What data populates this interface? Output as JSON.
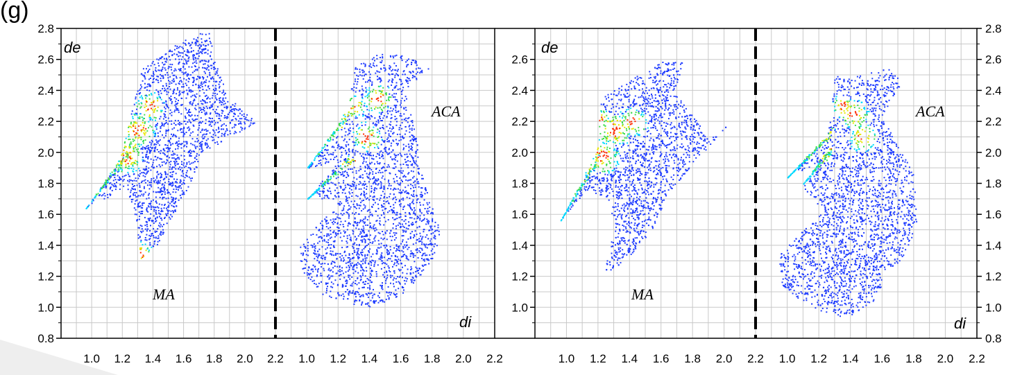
{
  "figure": {
    "panel_label": "(g)",
    "colors": {
      "low": "#1f3cff",
      "mid": "#00d9ff",
      "high1": "#3ddc4a",
      "high2": "#e6e600",
      "peak": "#ff2a00"
    }
  },
  "chart_data": [
    {
      "type": "scatter",
      "subtype": "2D fingerprint plot (point density colour map)",
      "xlabel": "di",
      "ylabel": "de",
      "xlim": [
        0.8,
        2.2
      ],
      "ylim": [
        0.8,
        2.8
      ],
      "x_ticks": [
        "1.0",
        "1.2",
        "1.4",
        "1.6",
        "1.8",
        "2.0",
        "2.2"
      ],
      "y_ticks": [
        "0.8",
        "1.0",
        "1.2",
        "1.4",
        "1.6",
        "1.8",
        "2.0",
        "2.2",
        "2.4",
        "2.6",
        "2.8"
      ],
      "y_axis_side": "left",
      "grid": true,
      "region_label": "MA",
      "spikes": [
        {
          "tip": [
            0.96,
            1.64
          ],
          "base": [
            1.28,
            2.06
          ]
        }
      ],
      "hull": [
        [
          0.96,
          1.64
        ],
        [
          1.18,
          1.95
        ],
        [
          1.33,
          2.55
        ],
        [
          1.55,
          2.7
        ],
        [
          1.76,
          2.8
        ],
        [
          1.8,
          2.6
        ],
        [
          1.9,
          2.35
        ],
        [
          2.08,
          2.2
        ],
        [
          1.9,
          2.1
        ],
        [
          1.72,
          2.0
        ],
        [
          1.62,
          1.75
        ],
        [
          1.5,
          1.55
        ],
        [
          1.42,
          1.4
        ],
        [
          1.32,
          1.32
        ],
        [
          1.28,
          1.6
        ],
        [
          1.22,
          1.78
        ],
        [
          1.08,
          1.7
        ]
      ],
      "hotspots": [
        [
          1.22,
          1.98,
          0.06
        ],
        [
          1.3,
          2.15,
          0.06
        ],
        [
          1.38,
          2.3,
          0.05
        ],
        [
          1.32,
          1.35,
          0.04
        ]
      ]
    },
    {
      "type": "scatter",
      "subtype": "2D fingerprint plot (point density colour map)",
      "xlabel": "di",
      "ylabel": "de",
      "xlim": [
        0.8,
        2.2
      ],
      "ylim": [
        0.8,
        2.8
      ],
      "x_ticks": [
        "1.0",
        "1.2",
        "1.4",
        "1.6",
        "1.8",
        "2.0",
        "2.2"
      ],
      "y_ticks": [],
      "grid": true,
      "region_label": "ACA",
      "spikes": [
        {
          "tip": [
            1.0,
            1.9
          ],
          "base": [
            1.3,
            2.3
          ]
        },
        {
          "tip": [
            1.0,
            1.7
          ],
          "base": [
            1.3,
            1.98
          ]
        }
      ],
      "hull": [
        [
          1.0,
          1.9
        ],
        [
          1.25,
          2.2
        ],
        [
          1.3,
          2.55
        ],
        [
          1.45,
          2.65
        ],
        [
          1.65,
          2.62
        ],
        [
          1.78,
          2.55
        ],
        [
          1.62,
          2.4
        ],
        [
          1.7,
          2.1
        ],
        [
          1.72,
          1.9
        ],
        [
          1.78,
          1.7
        ],
        [
          1.85,
          1.5
        ],
        [
          1.82,
          1.35
        ],
        [
          1.72,
          1.2
        ],
        [
          1.62,
          1.1
        ],
        [
          1.45,
          1.0
        ],
        [
          1.3,
          1.02
        ],
        [
          1.1,
          1.08
        ],
        [
          0.96,
          1.25
        ],
        [
          0.95,
          1.4
        ],
        [
          1.08,
          1.55
        ],
        [
          1.22,
          1.7
        ],
        [
          1.0,
          1.7
        ],
        [
          1.2,
          1.95
        ]
      ],
      "hotspots": [
        [
          1.38,
          2.1,
          0.05
        ],
        [
          1.45,
          2.35,
          0.05
        ],
        [
          1.3,
          2.3,
          0.04
        ]
      ]
    },
    {
      "type": "scatter",
      "subtype": "2D fingerprint plot (point density colour map)",
      "xlabel": "di",
      "ylabel": "de",
      "xlim": [
        0.8,
        2.2
      ],
      "ylim": [
        0.8,
        2.8
      ],
      "x_ticks": [
        "1.0",
        "1.2",
        "1.4",
        "1.6",
        "1.8",
        "2.0",
        "2.2"
      ],
      "y_ticks": [
        "1.0",
        "1.2",
        "1.4",
        "1.6",
        "1.8",
        "2.0",
        "2.2",
        "2.4",
        "2.6"
      ],
      "y_axis_side": "left",
      "grid": true,
      "region_label": "MA",
      "spikes": [
        {
          "tip": [
            0.96,
            1.56
          ],
          "base": [
            1.2,
            1.98
          ]
        }
      ],
      "hull": [
        [
          0.96,
          1.56
        ],
        [
          1.18,
          1.95
        ],
        [
          1.22,
          2.35
        ],
        [
          1.45,
          2.5
        ],
        [
          1.62,
          2.6
        ],
        [
          1.75,
          2.58
        ],
        [
          1.68,
          2.4
        ],
        [
          1.9,
          2.1
        ],
        [
          2.02,
          2.18
        ],
        [
          1.82,
          1.95
        ],
        [
          1.65,
          1.75
        ],
        [
          1.55,
          1.52
        ],
        [
          1.42,
          1.35
        ],
        [
          1.3,
          1.25
        ],
        [
          1.23,
          1.21
        ],
        [
          1.3,
          1.5
        ],
        [
          1.26,
          1.7
        ],
        [
          1.12,
          1.75
        ]
      ],
      "hotspots": [
        [
          1.22,
          1.98,
          0.06
        ],
        [
          1.3,
          2.15,
          0.06
        ],
        [
          1.42,
          2.2,
          0.05
        ],
        [
          1.2,
          2.22,
          0.04
        ]
      ]
    },
    {
      "type": "scatter",
      "subtype": "2D fingerprint plot (point density colour map)",
      "xlabel": "di",
      "ylabel": "de",
      "xlim": [
        0.8,
        2.2
      ],
      "ylim": [
        0.8,
        2.8
      ],
      "x_ticks": [
        "1.0",
        "1.2",
        "1.4",
        "1.6",
        "1.8",
        "2.0",
        "2.2"
      ],
      "y_ticks": [
        "0.8",
        "1.0",
        "1.2",
        "1.4",
        "1.6",
        "1.8",
        "2.0",
        "2.2",
        "2.4",
        "2.6",
        "2.8"
      ],
      "y_axis_side": "right",
      "grid": true,
      "region_label": "ACA",
      "spikes": [
        {
          "tip": [
            1.0,
            1.84
          ],
          "base": [
            1.3,
            2.15
          ]
        },
        {
          "tip": [
            1.1,
            1.8
          ],
          "base": [
            1.28,
            2.02
          ]
        }
      ],
      "hull": [
        [
          1.0,
          1.84
        ],
        [
          1.25,
          2.1
        ],
        [
          1.3,
          2.5
        ],
        [
          1.45,
          2.5
        ],
        [
          1.65,
          2.55
        ],
        [
          1.72,
          2.45
        ],
        [
          1.6,
          2.25
        ],
        [
          1.7,
          2.05
        ],
        [
          1.8,
          1.85
        ],
        [
          1.82,
          1.55
        ],
        [
          1.75,
          1.35
        ],
        [
          1.62,
          1.2
        ],
        [
          1.55,
          1.05
        ],
        [
          1.38,
          0.94
        ],
        [
          1.28,
          0.95
        ],
        [
          1.12,
          1.02
        ],
        [
          0.95,
          1.15
        ],
        [
          0.95,
          1.35
        ],
        [
          1.1,
          1.5
        ],
        [
          1.22,
          1.62
        ],
        [
          1.1,
          1.78
        ],
        [
          1.22,
          1.95
        ]
      ],
      "hotspots": [
        [
          1.42,
          2.25,
          0.05
        ],
        [
          1.48,
          2.1,
          0.05
        ],
        [
          1.35,
          2.3,
          0.04
        ]
      ]
    }
  ],
  "labels": {
    "de": "de",
    "di": "di"
  }
}
